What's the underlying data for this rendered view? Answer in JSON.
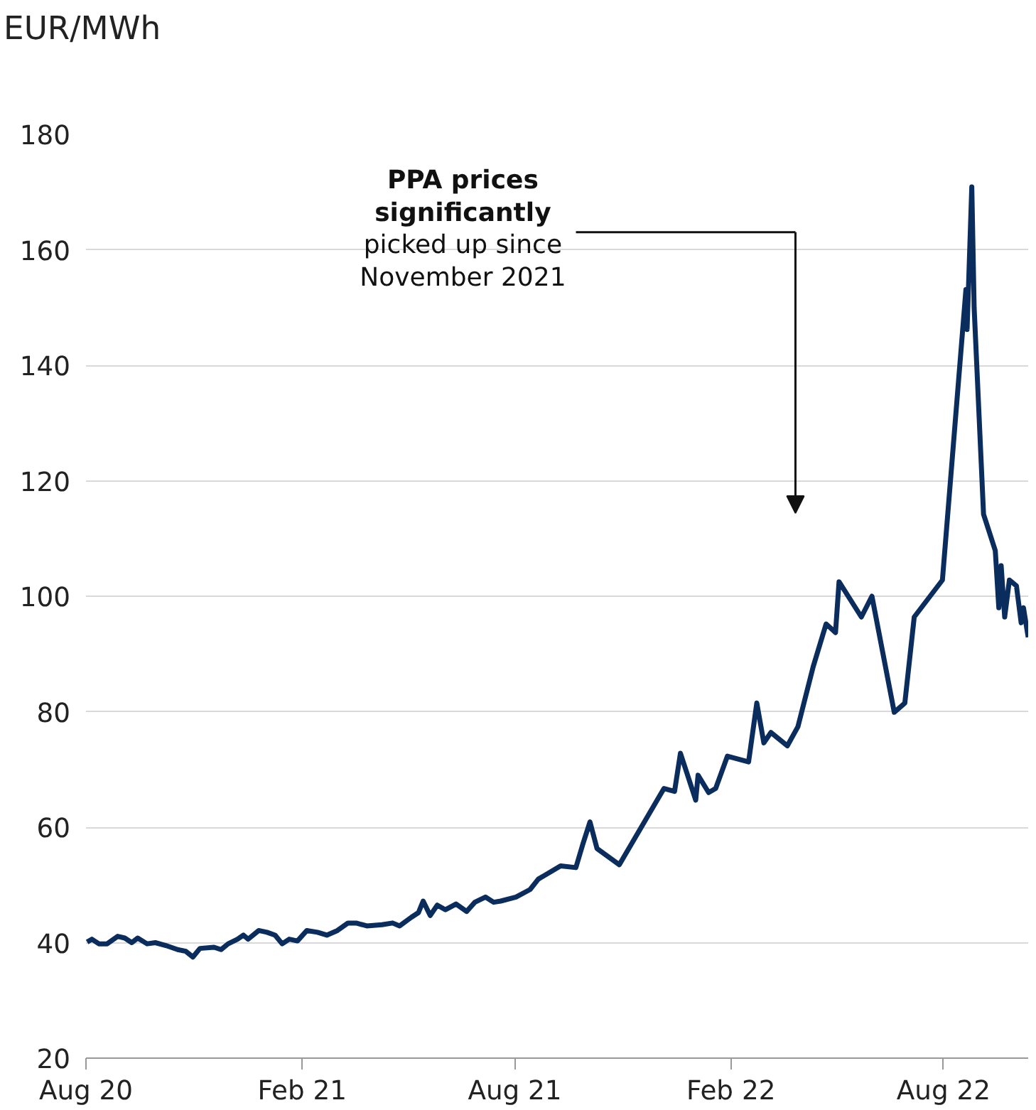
{
  "chart_data": {
    "type": "line",
    "ylabel": "EUR/MWh",
    "x": [
      "2020-08-02",
      "2020-08-06",
      "2020-08-12",
      "2020-08-19",
      "2020-08-28",
      "2020-09-03",
      "2020-09-09",
      "2020-09-14",
      "2020-09-22",
      "2020-09-29",
      "2020-10-08",
      "2020-10-18",
      "2020-10-25",
      "2020-10-31",
      "2020-11-06",
      "2020-11-18",
      "2020-11-24",
      "2020-11-30",
      "2020-12-08",
      "2020-12-13",
      "2020-12-17",
      "2020-12-26",
      "2021-01-02",
      "2021-01-09",
      "2021-01-15",
      "2021-01-21",
      "2021-01-28",
      "2021-02-05",
      "2021-02-14",
      "2021-02-22",
      "2021-03-03",
      "2021-03-12",
      "2021-03-19",
      "2021-03-28",
      "2021-04-10",
      "2021-04-19",
      "2021-04-25",
      "2021-05-05",
      "2021-05-11",
      "2021-05-15",
      "2021-05-21",
      "2021-05-27",
      "2021-06-03",
      "2021-06-12",
      "2021-06-21",
      "2021-06-28",
      "2021-07-07",
      "2021-07-14",
      "2021-07-20",
      "2021-08-02",
      "2021-08-14",
      "2021-08-21",
      "2021-09-09",
      "2021-09-22",
      "2021-09-28",
      "2021-10-04",
      "2021-10-10",
      "2021-10-29",
      "2021-12-06",
      "2021-12-15",
      "2021-12-20",
      "2022-01-02",
      "2022-01-04",
      "2022-01-13",
      "2022-01-19",
      "2022-01-29",
      "2022-02-16",
      "2022-02-23",
      "2022-03-01",
      "2022-03-07",
      "2022-03-21",
      "2022-03-30",
      "2022-04-12",
      "2022-04-23",
      "2022-05-01",
      "2022-05-04",
      "2022-05-23",
      "2022-06-01",
      "2022-06-20",
      "2022-06-29",
      "2022-07-07",
      "2022-07-31",
      "2022-08-20",
      "2022-08-21",
      "2022-08-25",
      "2022-08-27",
      "2022-09-04",
      "2022-09-14",
      "2022-09-17",
      "2022-09-19",
      "2022-09-22",
      "2022-09-26",
      "2022-10-02",
      "2022-10-06",
      "2022-10-08",
      "2022-10-12"
    ],
    "series": [
      {
        "color": "#0b2d5e",
        "values": [
          40.1,
          40.6,
          39.8,
          39.8,
          41.1,
          40.8,
          40.0,
          40.8,
          39.8,
          40.0,
          39.5,
          38.8,
          38.5,
          37.5,
          39.0,
          39.2,
          38.8,
          39.8,
          40.6,
          41.3,
          40.6,
          42.1,
          41.8,
          41.3,
          39.8,
          40.6,
          40.3,
          42.1,
          41.8,
          41.3,
          42.1,
          43.4,
          43.4,
          42.9,
          43.1,
          43.4,
          42.9,
          44.4,
          45.2,
          47.2,
          44.7,
          46.5,
          45.7,
          46.7,
          45.4,
          47.0,
          47.9,
          47.0,
          47.2,
          47.9,
          49.2,
          51.0,
          53.3,
          53.0,
          57.1,
          60.9,
          56.3,
          53.5,
          66.7,
          66.2,
          72.8,
          64.7,
          69.0,
          66.0,
          66.7,
          72.3,
          71.3,
          81.5,
          74.6,
          76.4,
          74.1,
          77.4,
          87.8,
          95.2,
          93.7,
          102.5,
          96.4,
          100.0,
          79.9,
          81.5,
          96.4,
          102.8,
          153.1,
          146.2,
          170.9,
          150.0,
          114.2,
          107.9,
          98.0,
          105.3,
          96.4,
          102.8,
          101.8,
          95.4,
          98.0,
          92.9
        ]
      }
    ],
    "xlim": [
      "2020-08-01",
      "2022-10-12"
    ],
    "xticks": [
      {
        "value": "2020-08-01",
        "label": "Aug 20"
      },
      {
        "value": "2021-02-01",
        "label": "Feb 21"
      },
      {
        "value": "2021-08-01",
        "label": "Aug 21"
      },
      {
        "value": "2022-02-01",
        "label": "Feb 22"
      },
      {
        "value": "2022-08-01",
        "label": "Aug 22"
      }
    ],
    "ylim": [
      20,
      180
    ],
    "yticks": [
      20,
      40,
      60,
      80,
      100,
      120,
      140,
      160,
      180
    ],
    "grid": "y",
    "marker": "none",
    "line_style": "solid",
    "annotations": [
      "PPA prices\nsignificantly\npicked up since\nNovember 2021"
    ]
  }
}
